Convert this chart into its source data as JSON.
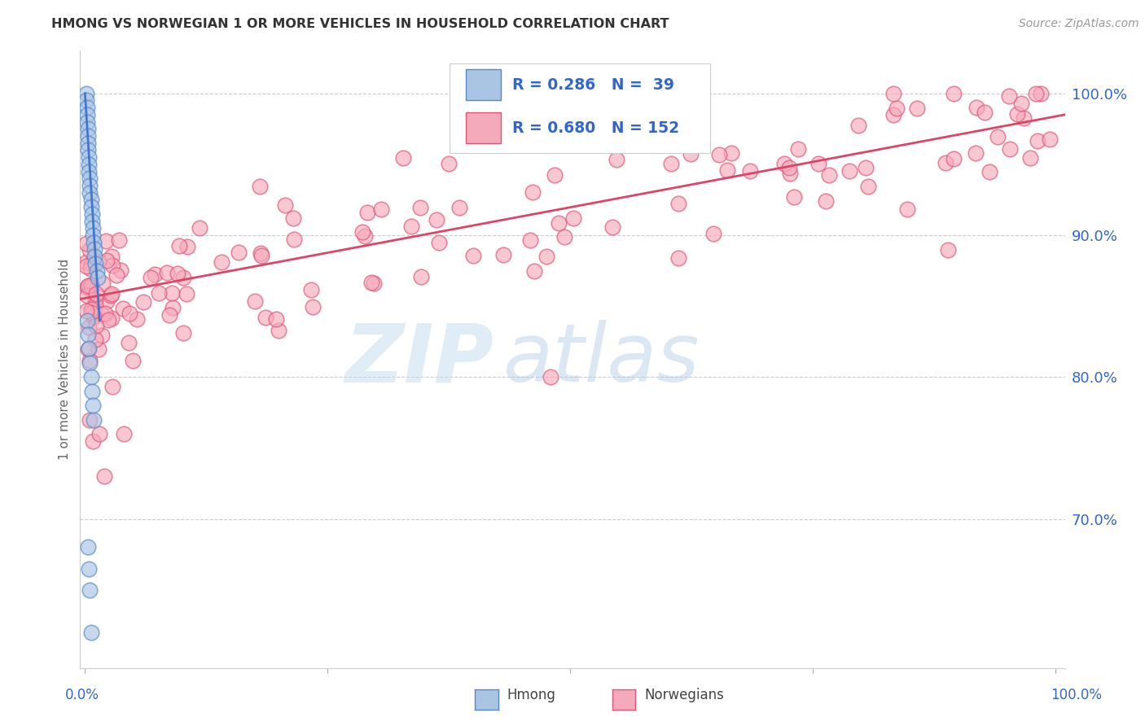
{
  "title": "HMONG VS NORWEGIAN 1 OR MORE VEHICLES IN HOUSEHOLD CORRELATION CHART",
  "source": "Source: ZipAtlas.com",
  "ylabel": "1 or more Vehicles in Household",
  "legend_r1": "R = 0.286",
  "legend_n1": "N =  39",
  "legend_r2": "R = 0.680",
  "legend_n2": "N = 152",
  "color_hmong_fill": "#aac4e4",
  "color_hmong_edge": "#5588cc",
  "color_norwegian_fill": "#f5aabb",
  "color_norwegian_edge": "#dd5577",
  "color_line_hmong": "#4477cc",
  "color_line_norwegian": "#dd4466",
  "color_text_blue": "#3366cc",
  "color_text_dark": "#444444",
  "background_color": "#ffffff",
  "grid_color": "#cccccc",
  "watermark_zip": "ZIP",
  "watermark_atlas": "atlas",
  "ylim_min": 0.595,
  "ylim_max": 1.03,
  "xlim_min": -0.005,
  "xlim_max": 1.01,
  "yticks": [
    0.7,
    0.8,
    0.9,
    1.0
  ],
  "ytick_labels": [
    "70.0%",
    "80.0%",
    "90.0%",
    "100.0%"
  ]
}
